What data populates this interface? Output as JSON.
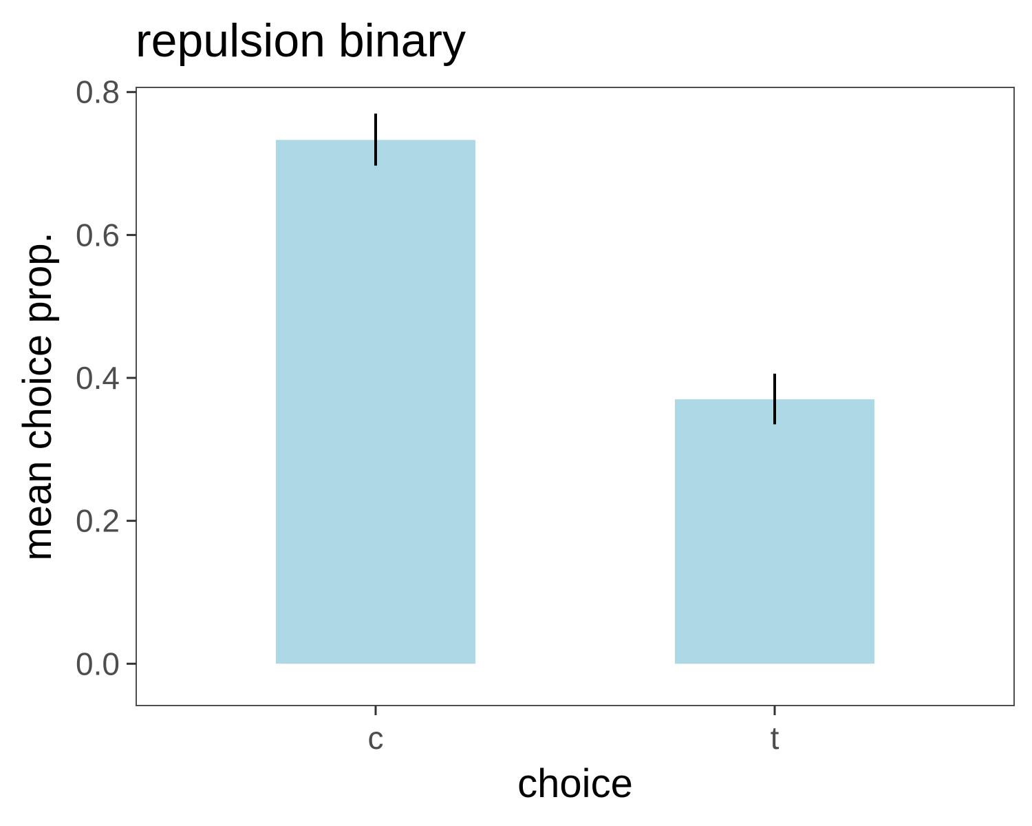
{
  "chart_data": {
    "type": "bar",
    "title": "repulsion binary",
    "xlabel": "choice",
    "ylabel": "mean choice prop.",
    "categories": [
      "c",
      "t"
    ],
    "values": [
      0.733,
      0.37
    ],
    "error_low": [
      0.699,
      0.337
    ],
    "error_high": [
      0.768,
      0.404
    ],
    "ylim": [
      -0.0585,
      0.8065
    ],
    "yticks": [
      0.0,
      0.2,
      0.4,
      0.6,
      0.8
    ],
    "ytick_labels": [
      "0.0",
      "0.2",
      "0.4",
      "0.6",
      "0.8"
    ],
    "grid": false,
    "legend": "none",
    "bar_color": "#add8e6",
    "errorbar_color": "#000000",
    "panel_border_color": "#4d4d4d"
  }
}
